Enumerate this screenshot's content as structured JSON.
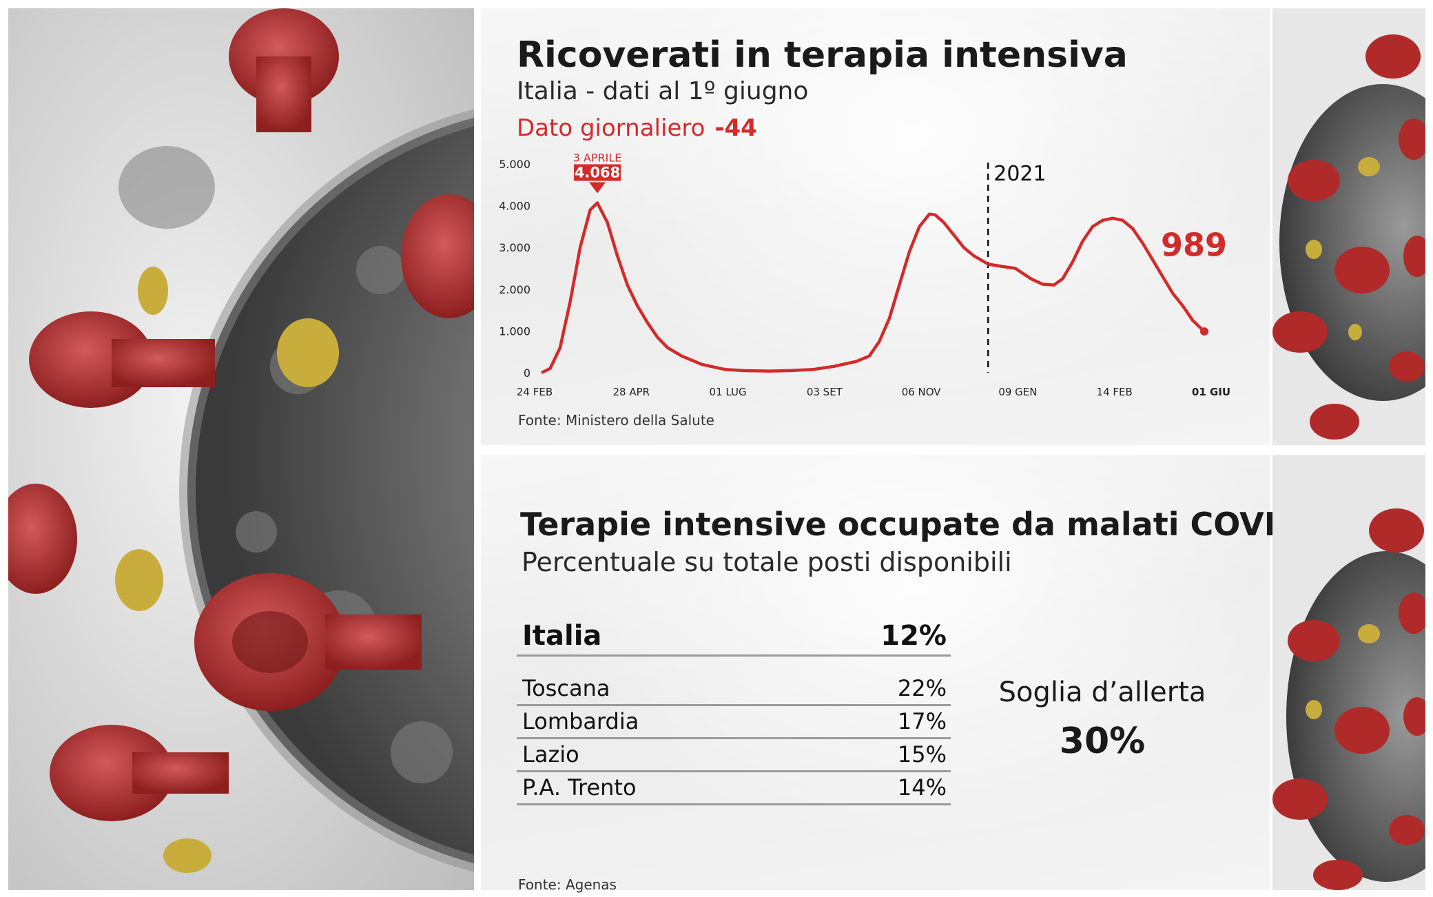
{
  "chart_data": [
    {
      "type": "line",
      "title": "Ricoverati in terapia intensiva",
      "subtitle": "Italia - dati al 1º giugno",
      "daily_label": "Dato giornaliero",
      "daily_value": "-44",
      "y_ticks": [
        "5.000",
        "4.000",
        "3.000",
        "2.000",
        "1.000",
        "0"
      ],
      "ylim": [
        0,
        5000
      ],
      "x_ticks": [
        "24 FEB",
        "28 APR",
        "01 LUG",
        "03 SET",
        "06 NOV",
        "09 GEN",
        "14 FEB",
        "01 GIU"
      ],
      "x_start": "2020-02-24",
      "x_end": "2021-06-01",
      "series": [
        {
          "color": "#d42a2a",
          "points": [
            [
              "2020-02-24",
              0
            ],
            [
              "2020-03-01",
              100
            ],
            [
              "2020-03-08",
              600
            ],
            [
              "2020-03-15",
              1700
            ],
            [
              "2020-03-22",
              3000
            ],
            [
              "2020-03-29",
              3900
            ],
            [
              "2020-04-03",
              4068
            ],
            [
              "2020-04-10",
              3600
            ],
            [
              "2020-04-17",
              2800
            ],
            [
              "2020-04-24",
              2100
            ],
            [
              "2020-05-01",
              1600
            ],
            [
              "2020-05-08",
              1200
            ],
            [
              "2020-05-15",
              850
            ],
            [
              "2020-05-22",
              600
            ],
            [
              "2020-06-01",
              400
            ],
            [
              "2020-06-15",
              200
            ],
            [
              "2020-07-01",
              80
            ],
            [
              "2020-07-15",
              50
            ],
            [
              "2020-08-01",
              40
            ],
            [
              "2020-08-15",
              50
            ],
            [
              "2020-09-01",
              80
            ],
            [
              "2020-09-15",
              150
            ],
            [
              "2020-10-01",
              270
            ],
            [
              "2020-10-10",
              400
            ],
            [
              "2020-10-17",
              750
            ],
            [
              "2020-10-24",
              1300
            ],
            [
              "2020-10-31",
              2100
            ],
            [
              "2020-11-07",
              2900
            ],
            [
              "2020-11-14",
              3500
            ],
            [
              "2020-11-21",
              3800
            ],
            [
              "2020-11-25",
              3780
            ],
            [
              "2020-12-01",
              3600
            ],
            [
              "2020-12-08",
              3300
            ],
            [
              "2020-12-15",
              3000
            ],
            [
              "2020-12-22",
              2800
            ],
            [
              "2021-01-01",
              2600
            ],
            [
              "2021-01-10",
              2550
            ],
            [
              "2021-01-20",
              2500
            ],
            [
              "2021-01-31",
              2250
            ],
            [
              "2021-02-08",
              2120
            ],
            [
              "2021-02-16",
              2100
            ],
            [
              "2021-02-22",
              2250
            ],
            [
              "2021-03-01",
              2650
            ],
            [
              "2021-03-08",
              3150
            ],
            [
              "2021-03-15",
              3500
            ],
            [
              "2021-03-22",
              3650
            ],
            [
              "2021-03-29",
              3700
            ],
            [
              "2021-04-05",
              3650
            ],
            [
              "2021-04-12",
              3450
            ],
            [
              "2021-04-19",
              3100
            ],
            [
              "2021-04-26",
              2700
            ],
            [
              "2021-05-03",
              2300
            ],
            [
              "2021-05-10",
              1900
            ],
            [
              "2021-05-17",
              1600
            ],
            [
              "2021-05-24",
              1250
            ],
            [
              "2021-06-01",
              989
            ]
          ]
        }
      ],
      "peak_annotation": {
        "date_label": "3 APRILE",
        "value_label": "4.068"
      },
      "divider": {
        "x": "2021-01-01",
        "label": "2021"
      },
      "last_value_label": "989",
      "source": "Fonte: Ministero della Salute"
    },
    {
      "type": "table",
      "title": "Terapie intensive occupate da malati COVID",
      "subtitle": "Percentuale su totale posti disponibili",
      "rows": [
        {
          "name": "Italia",
          "value": "12%"
        },
        {
          "name": "Toscana",
          "value": "22%"
        },
        {
          "name": "Lombardia",
          "value": "17%"
        },
        {
          "name": "Lazio",
          "value": "15%"
        },
        {
          "name": "P.A. Trento",
          "value": "14%"
        }
      ],
      "alert_label": "Soglia d’allerta",
      "alert_value": "30%",
      "source": "Fonte: Agenas"
    }
  ],
  "colors": {
    "accent": "#d42a2a",
    "text": "#1a1a1a"
  }
}
